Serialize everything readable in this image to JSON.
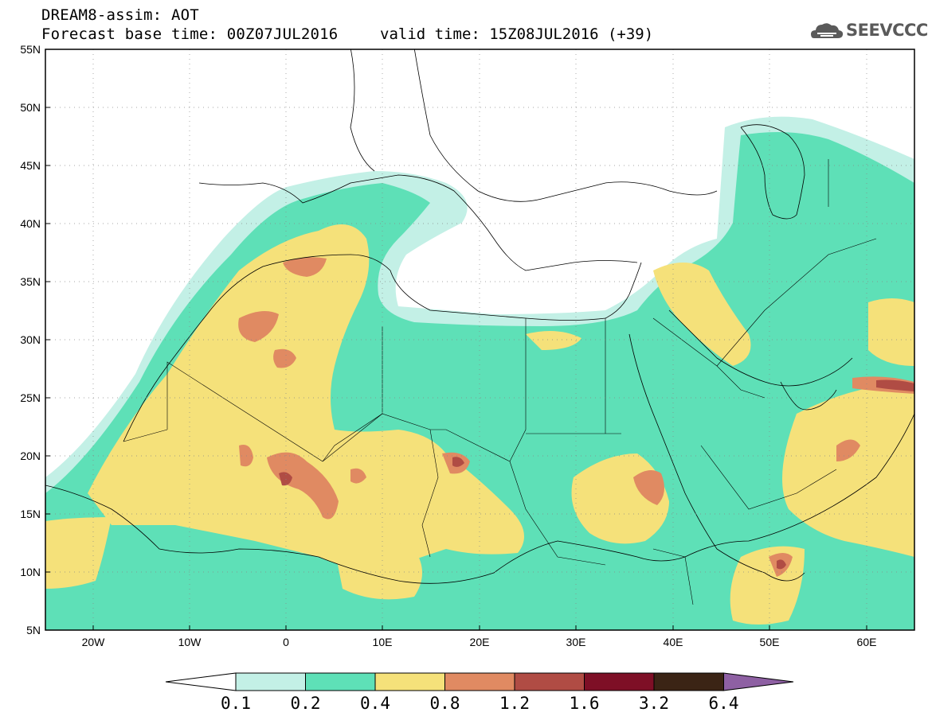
{
  "header": {
    "title": "DREAM8-assim: AOT",
    "base_time": "Forecast base time: 00Z07JUL2016",
    "valid_time": "valid time: 15Z08JUL2016 (+39)",
    "logo_text": "SEEVCCC"
  },
  "map": {
    "lon_labels": [
      "20W",
      "10W",
      "0",
      "10E",
      "20E",
      "30E",
      "40E",
      "50E",
      "60E"
    ],
    "lat_labels": [
      "55N",
      "50N",
      "45N",
      "40N",
      "35N",
      "30N",
      "25N",
      "20N",
      "15N",
      "10N",
      "5N"
    ]
  },
  "colorbar": {
    "labels": [
      "0.1",
      "0.2",
      "0.4",
      "0.8",
      "1.2",
      "1.6",
      "3.2",
      "6.4"
    ],
    "colors": [
      "#c3f0e6",
      "#5ee0b7",
      "#f5e17a",
      "#e08a62",
      "#b04c44",
      "#7e0f26",
      "#3b2415",
      "#8e60a3"
    ]
  },
  "icons": [
    "cloud-logo-icon"
  ]
}
